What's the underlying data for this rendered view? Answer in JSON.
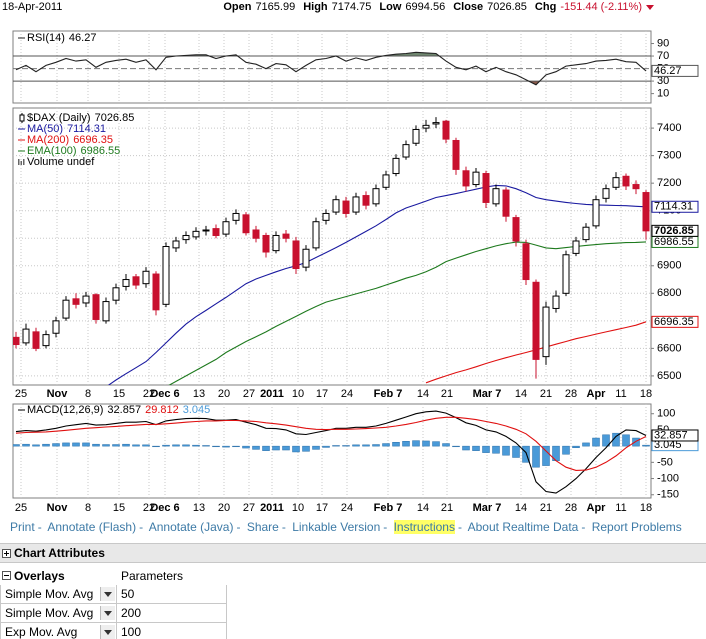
{
  "header": {
    "date": "18-Apr-2011",
    "labels": [
      "Open",
      "High",
      "Low",
      "Close",
      "Chg"
    ],
    "change": -151.44,
    "change_pct": "(-2.11%)"
  },
  "chart_data": [
    {
      "type": "candlestick",
      "title": "$DAX (Daily)",
      "note": "Volume undef",
      "up_color": "#ffffff",
      "down_color": "#c8102e",
      "grid": true,
      "xlim": [
        -0.3,
        63.5
      ],
      "xticks": [
        {
          "value": 0.5,
          "label": "25"
        },
        {
          "value": 4.1,
          "label": "Nov"
        },
        {
          "value": 7.2,
          "label": "8"
        },
        {
          "value": 10.3,
          "label": "15"
        },
        {
          "value": 13.3,
          "label": "22"
        },
        {
          "value": 14.9,
          "label": "Dec 6"
        },
        {
          "value": 18.3,
          "label": "13"
        },
        {
          "value": 20.8,
          "label": "20"
        },
        {
          "value": 23.3,
          "label": "27"
        },
        {
          "value": 25.6,
          "label": "2011"
        },
        {
          "value": 28.2,
          "label": "10"
        },
        {
          "value": 30.6,
          "label": "17"
        },
        {
          "value": 33.1,
          "label": "24"
        },
        {
          "value": 37.2,
          "label": "Feb 7"
        },
        {
          "value": 40.7,
          "label": "14"
        },
        {
          "value": 43.1,
          "label": "21"
        },
        {
          "value": 47.1,
          "label": "Mar 7"
        },
        {
          "value": 50.5,
          "label": "14"
        },
        {
          "value": 53,
          "label": "21"
        },
        {
          "value": 55.5,
          "label": "28"
        },
        {
          "value": 58,
          "label": "Apr"
        },
        {
          "value": 60.5,
          "label": "11"
        },
        {
          "value": 63,
          "label": "18"
        }
      ],
      "ylim": [
        6467,
        7473
      ],
      "yticks": [
        6500,
        6600,
        6700,
        6800,
        6900,
        7000,
        7100,
        7200,
        7300,
        7400
      ],
      "ohlc": [
        [
          6640,
          6660,
          6600,
          6614
        ],
        [
          6620,
          6690,
          6610,
          6670
        ],
        [
          6660,
          6675,
          6590,
          6600
        ],
        [
          6610,
          6665,
          6600,
          6650
        ],
        [
          6655,
          6715,
          6640,
          6700
        ],
        [
          6710,
          6790,
          6700,
          6775
        ],
        [
          6780,
          6800,
          6745,
          6760
        ],
        [
          6765,
          6805,
          6750,
          6790
        ],
        [
          6795,
          6800,
          6690,
          6705
        ],
        [
          6700,
          6785,
          6690,
          6770
        ],
        [
          6775,
          6835,
          6760,
          6820
        ],
        [
          6825,
          6870,
          6810,
          6850
        ],
        [
          6860,
          6870,
          6815,
          6830
        ],
        [
          6835,
          6895,
          6820,
          6880
        ],
        [
          6870,
          6880,
          6720,
          6740
        ],
        [
          6760,
          6985,
          6750,
          6970
        ],
        [
          6965,
          7005,
          6950,
          6990
        ],
        [
          6995,
          7025,
          6980,
          7010
        ],
        [
          7005,
          7040,
          6995,
          7025
        ],
        [
          7030,
          7045,
          7010,
          7030
        ],
        [
          7035,
          7050,
          7000,
          7010
        ],
        [
          7015,
          7075,
          7005,
          7060
        ],
        [
          7065,
          7105,
          7050,
          7090
        ],
        [
          7085,
          7095,
          7010,
          7020
        ],
        [
          7030,
          7045,
          6985,
          7000
        ],
        [
          7010,
          7020,
          6930,
          6950
        ],
        [
          6955,
          7025,
          6945,
          7010
        ],
        [
          7015,
          7030,
          6985,
          7000
        ],
        [
          6990,
          7005,
          6870,
          6890
        ],
        [
          6895,
          6975,
          6880,
          6960
        ],
        [
          6965,
          7075,
          6955,
          7060
        ],
        [
          7065,
          7105,
          7050,
          7090
        ],
        [
          7095,
          7155,
          7085,
          7140
        ],
        [
          7135,
          7150,
          7075,
          7090
        ],
        [
          7095,
          7165,
          7085,
          7150
        ],
        [
          7155,
          7170,
          7105,
          7120
        ],
        [
          7125,
          7195,
          7115,
          7180
        ],
        [
          7185,
          7245,
          7175,
          7230
        ],
        [
          7235,
          7305,
          7225,
          7290
        ],
        [
          7295,
          7355,
          7285,
          7340
        ],
        [
          7345,
          7410,
          7335,
          7395
        ],
        [
          7400,
          7430,
          7385,
          7410
        ],
        [
          7415,
          7440,
          7400,
          7420
        ],
        [
          7425,
          7430,
          7345,
          7360
        ],
        [
          7355,
          7365,
          7230,
          7250
        ],
        [
          7245,
          7260,
          7170,
          7190
        ],
        [
          7195,
          7255,
          7185,
          7240
        ],
        [
          7235,
          7245,
          7110,
          7130
        ],
        [
          7125,
          7195,
          7115,
          7180
        ],
        [
          7175,
          7185,
          7060,
          7080
        ],
        [
          7075,
          7085,
          6970,
          6990
        ],
        [
          6980,
          6995,
          6830,
          6850
        ],
        [
          6840,
          6850,
          6490,
          6560
        ],
        [
          6570,
          6770,
          6540,
          6750
        ],
        [
          6745,
          6810,
          6730,
          6790
        ],
        [
          6800,
          6955,
          6790,
          6940
        ],
        [
          6945,
          7005,
          6935,
          6990
        ],
        [
          6995,
          7055,
          6985,
          7040
        ],
        [
          7045,
          7155,
          7035,
          7140
        ],
        [
          7145,
          7195,
          7130,
          7180
        ],
        [
          7185,
          7240,
          7175,
          7220
        ],
        [
          7225,
          7235,
          7175,
          7190
        ],
        [
          7195,
          7210,
          7160,
          7180
        ],
        [
          7165.99,
          7174.75,
          6994.56,
          7026.85
        ]
      ],
      "series": [
        {
          "name": "MA(50)",
          "color": "#1a1aa0",
          "values": [
            null,
            null,
            null,
            null,
            null,
            null,
            null,
            null,
            null,
            6460,
            6485,
            6508,
            6530,
            6552,
            6585,
            6620,
            6655,
            6688,
            6715,
            6738,
            6762,
            6785,
            6810,
            6835,
            6852,
            6865,
            6878,
            6890,
            6900,
            6912,
            6930,
            6948,
            6966,
            6985,
            7005,
            7025,
            7045,
            7068,
            7092,
            7110,
            7122,
            7135,
            7148,
            7155,
            7162,
            7170,
            7178,
            7186,
            7192,
            7190,
            7180,
            7165,
            7148,
            7140,
            7135,
            7130,
            7126,
            7123,
            7121,
            7120,
            7119,
            7118,
            7116,
            7114.31
          ]
        },
        {
          "name": "MA(200)",
          "color": "#e01010",
          "values": [
            null,
            null,
            null,
            null,
            null,
            null,
            null,
            null,
            null,
            null,
            null,
            null,
            null,
            null,
            null,
            null,
            null,
            null,
            null,
            null,
            null,
            null,
            null,
            null,
            null,
            null,
            null,
            null,
            null,
            null,
            null,
            null,
            null,
            null,
            null,
            null,
            null,
            null,
            null,
            null,
            null,
            6475,
            6488,
            6500,
            6512,
            6522,
            6533,
            6545,
            6556,
            6566,
            6576,
            6585,
            6595,
            6605,
            6615,
            6625,
            6635,
            6643,
            6652,
            6660,
            6668,
            6676,
            6684,
            6696.35
          ]
        },
        {
          "name": "EMA(100)",
          "color": "#1e7a1e",
          "values": [
            null,
            null,
            null,
            null,
            null,
            null,
            null,
            null,
            null,
            null,
            null,
            null,
            null,
            null,
            null,
            6460,
            6480,
            6500,
            6520,
            6540,
            6560,
            6585,
            6605,
            6625,
            6642,
            6660,
            6680,
            6698,
            6716,
            6735,
            6752,
            6768,
            6778,
            6788,
            6798,
            6808,
            6818,
            6830,
            6842,
            6855,
            6865,
            6878,
            6895,
            6915,
            6928,
            6940,
            6952,
            6962,
            6972,
            6980,
            6986,
            6985,
            6975,
            6965,
            6962,
            6966,
            6970,
            6974,
            6977,
            6980,
            6982,
            6984,
            6985,
            6986.55
          ]
        }
      ]
    },
    {
      "type": "line",
      "grid": false,
      "ylim": [
        -5,
        110
      ],
      "yticks": [
        90,
        70,
        50,
        30,
        10
      ],
      "reference_lines": [
        70,
        50,
        30
      ],
      "fill_above_color": "#6f876f",
      "fill_below_color": "#8b5a4a",
      "series": [
        {
          "name": "RSI(14)",
          "color": "#222222",
          "values": [
            48,
            55,
            45,
            55,
            60,
            66,
            62,
            64,
            52,
            60,
            63,
            65,
            60,
            64,
            48,
            68,
            70,
            71,
            72,
            72,
            66,
            70,
            72,
            60,
            57,
            50,
            58,
            56,
            45,
            55,
            64,
            66,
            70,
            62,
            67,
            63,
            68,
            71,
            73,
            74,
            76,
            75,
            74,
            62,
            52,
            48,
            54,
            45,
            52,
            45,
            40,
            32,
            24,
            40,
            45,
            54,
            56,
            58,
            62,
            63,
            65,
            61,
            60,
            46.27
          ]
        }
      ]
    },
    {
      "type": "macd",
      "title": "MACD(12,26,9)",
      "grid": false,
      "ylim": [
        -160,
        130
      ],
      "yticks": [
        100,
        50,
        0,
        -50,
        -100,
        -150
      ],
      "series": [
        {
          "type": "line",
          "color": "#000000",
          "values": [
            45,
            48,
            46,
            50,
            55,
            62,
            66,
            70,
            65,
            66,
            70,
            74,
            74,
            76,
            66,
            78,
            82,
            85,
            86,
            85,
            80,
            80,
            82,
            74,
            66,
            55,
            54,
            50,
            38,
            36,
            42,
            48,
            55,
            55,
            58,
            58,
            62,
            70,
            80,
            90,
            100,
            106,
            108,
            102,
            88,
            72,
            64,
            50,
            44,
            30,
            10,
            -20,
            -110,
            -140,
            -145,
            -125,
            -100,
            -70,
            -35,
            -5,
            30,
            50,
            48,
            32.857
          ]
        },
        {
          "type": "line",
          "color": "#e01010",
          "values": [
            40,
            42,
            43,
            44,
            46,
            49,
            52,
            55,
            57,
            59,
            61,
            63,
            65,
            67,
            67,
            69,
            71,
            74,
            76,
            78,
            78,
            79,
            79,
            78,
            76,
            72,
            69,
            65,
            60,
            55,
            52,
            51,
            52,
            52,
            53,
            54,
            56,
            58,
            62,
            67,
            73,
            80,
            86,
            89,
            89,
            86,
            82,
            76,
            70,
            62,
            52,
            38,
            15,
            -15,
            -45,
            -65,
            -75,
            -74,
            -65,
            -50,
            -30,
            -5,
            15,
            29.812
          ]
        },
        {
          "type": "bar",
          "color": "#4a9ad8",
          "values": [
            5,
            6,
            4,
            6,
            8,
            10,
            10,
            10,
            6,
            5,
            5,
            6,
            4,
            4,
            -2,
            3,
            4,
            4,
            3,
            2,
            -2,
            -3,
            -2,
            -6,
            -10,
            -14,
            -12,
            -12,
            -18,
            -16,
            -10,
            -4,
            2,
            2,
            4,
            4,
            5,
            8,
            12,
            15,
            17,
            16,
            14,
            8,
            -2,
            -12,
            -14,
            -20,
            -22,
            -28,
            -35,
            -50,
            -65,
            -60,
            -45,
            -25,
            -5,
            10,
            25,
            35,
            40,
            35,
            25,
            3.045
          ]
        }
      ]
    }
  ],
  "links": [
    "Print",
    "Annotate (Flash)",
    "Annotate (Java)",
    "Share",
    "Linkable Version",
    "Instructions",
    "About Realtime Data",
    "Report Problems"
  ],
  "link_separator": "-",
  "attributes": {
    "title": "Chart Attributes",
    "columns": [
      "Overlays",
      "Parameters"
    ],
    "rows": [
      [
        "Simple Mov. Avg",
        50
      ],
      [
        "Simple Mov. Avg",
        200
      ],
      [
        "Exp Mov. Avg",
        100
      ]
    ]
  }
}
